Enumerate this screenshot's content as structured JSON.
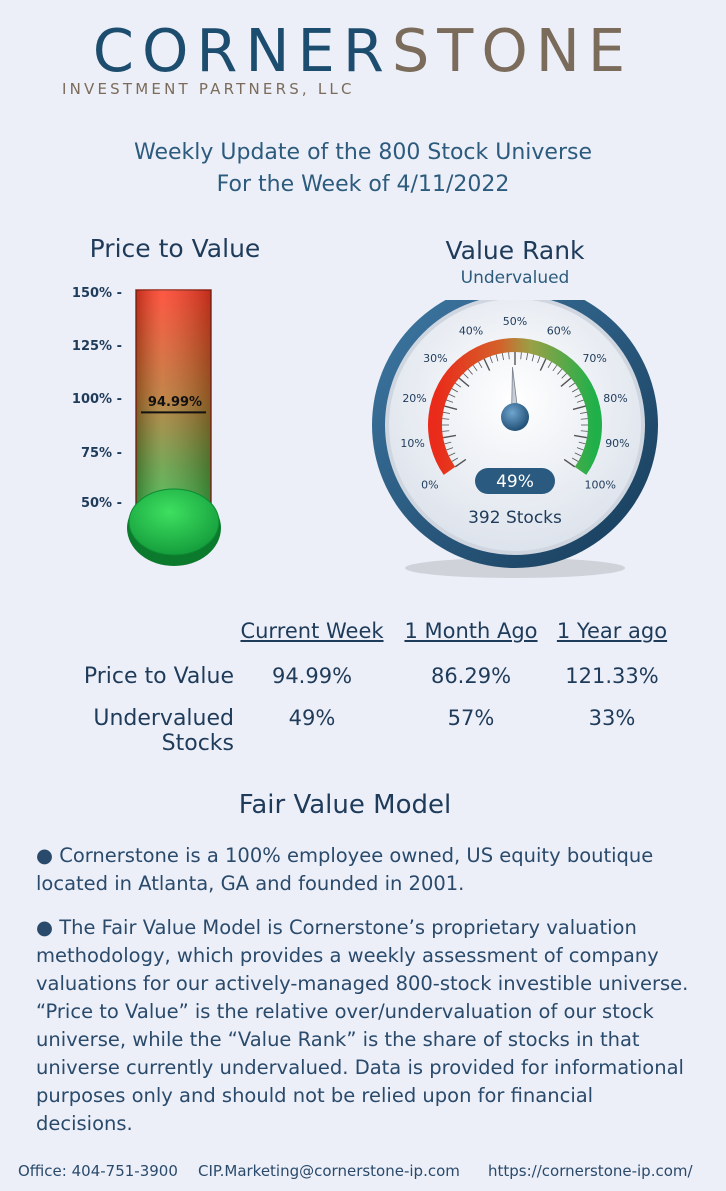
{
  "logo": {
    "part1": "CORNER",
    "part2": "STONE",
    "sub": "INVESTMENT PARTNERS, LLC"
  },
  "header": {
    "line1": "Weekly Update of the 800 Stock Universe",
    "line2": "For the Week of 4/11/2022"
  },
  "thermometer": {
    "title": "Price to Value",
    "ticks": [
      "150% -",
      "125% -",
      "100% -",
      "75% -",
      "50% -"
    ],
    "value_label": "94.99%",
    "value": 94.99,
    "scale_min": 50,
    "scale_max": 150
  },
  "gauge": {
    "title": "Value Rank",
    "subtitle": "Undervalued",
    "labels": [
      "0%",
      "10%",
      "20%",
      "30%",
      "40%",
      "50%",
      "60%",
      "70%",
      "80%",
      "90%",
      "100%"
    ],
    "value": 49,
    "value_label": "49%",
    "count_label": "392 Stocks"
  },
  "table": {
    "columns": [
      "Current Week",
      "1 Month Ago",
      "1 Year ago"
    ],
    "rows": [
      {
        "label": "Price to Value",
        "values": [
          "94.99%",
          "86.29%",
          "121.33%"
        ]
      },
      {
        "label": "Undervalued Stocks",
        "values": [
          "49%",
          "57%",
          "33%"
        ]
      }
    ]
  },
  "model": {
    "title": "Fair Value Model",
    "p1": "● Cornerstone is a 100% employee owned, US equity boutique located in Atlanta, GA and founded in 2001.",
    "p2": "● The Fair Value Model is Cornerstone’s proprietary valuation methodology, which provides a weekly assessment of company valuations for our actively-managed 800-stock investible universe.  “Price to Value” is the relative over/undervaluation of our stock universe, while the “Value Rank” is the share of stocks in that universe currently undervalued.  Data is provided for informational purposes only and should not be relied upon for financial decisions."
  },
  "footer": {
    "office": "Office: 404-751-3900",
    "email": "CIP.Marketing@cornerstone-ip.com",
    "url": "https://cornerstone-ip.com/"
  },
  "colors": {
    "navy": "#1f3b5a",
    "red": "#e8321f",
    "green": "#22b04a",
    "ring": "#2b5a80"
  }
}
